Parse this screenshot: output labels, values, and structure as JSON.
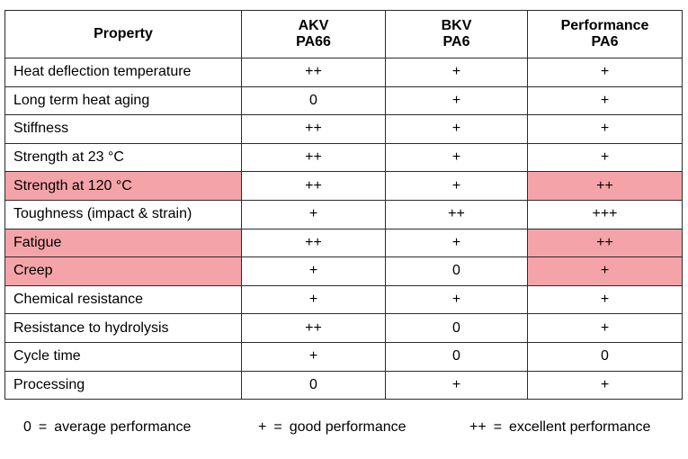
{
  "table": {
    "headers": [
      {
        "line1": "Property",
        "line2": ""
      },
      {
        "line1": "AKV",
        "line2": "PA66"
      },
      {
        "line1": "BKV",
        "line2": "PA6"
      },
      {
        "line1": "Performance",
        "line2": "PA6"
      }
    ],
    "rows": [
      {
        "property": "Heat deflection temperature",
        "akv": "++",
        "bkv": "+",
        "perf": "+"
      },
      {
        "property": "Long term heat aging",
        "akv": "0",
        "bkv": "+",
        "perf": "+"
      },
      {
        "property": "Stiffness",
        "akv": "++",
        "bkv": "+",
        "perf": "+"
      },
      {
        "property": "Strength at 23 °C",
        "akv": "++",
        "bkv": "+",
        "perf": "+"
      },
      {
        "property": "Strength at 120 °C",
        "akv": "++",
        "bkv": "+",
        "perf": "++"
      },
      {
        "property": "Toughness (impact & strain)",
        "akv": "+",
        "bkv": "++",
        "perf": "+++"
      },
      {
        "property": "Fatigue",
        "akv": "++",
        "bkv": "+",
        "perf": "++"
      },
      {
        "property": "Creep",
        "akv": "+",
        "bkv": "0",
        "perf": "+"
      },
      {
        "property": "Chemical resistance",
        "akv": "+",
        "bkv": "+",
        "perf": "+"
      },
      {
        "property": "Resistance to hydrolysis",
        "akv": "++",
        "bkv": "0",
        "perf": "+"
      },
      {
        "property": "Cycle time",
        "akv": "+",
        "bkv": "0",
        "perf": "0"
      },
      {
        "property": "Processing",
        "akv": "0",
        "bkv": "+",
        "perf": "+"
      }
    ]
  },
  "legend": [
    {
      "symbol": "0",
      "equals": "=",
      "meaning": "average performance"
    },
    {
      "symbol": "+",
      "equals": "=",
      "meaning": "good performance"
    },
    {
      "symbol": "++",
      "equals": "=",
      "meaning": "excellent performance"
    }
  ],
  "colors": {
    "highlight": "#f4a4a8",
    "border": "#2b2b2b"
  }
}
